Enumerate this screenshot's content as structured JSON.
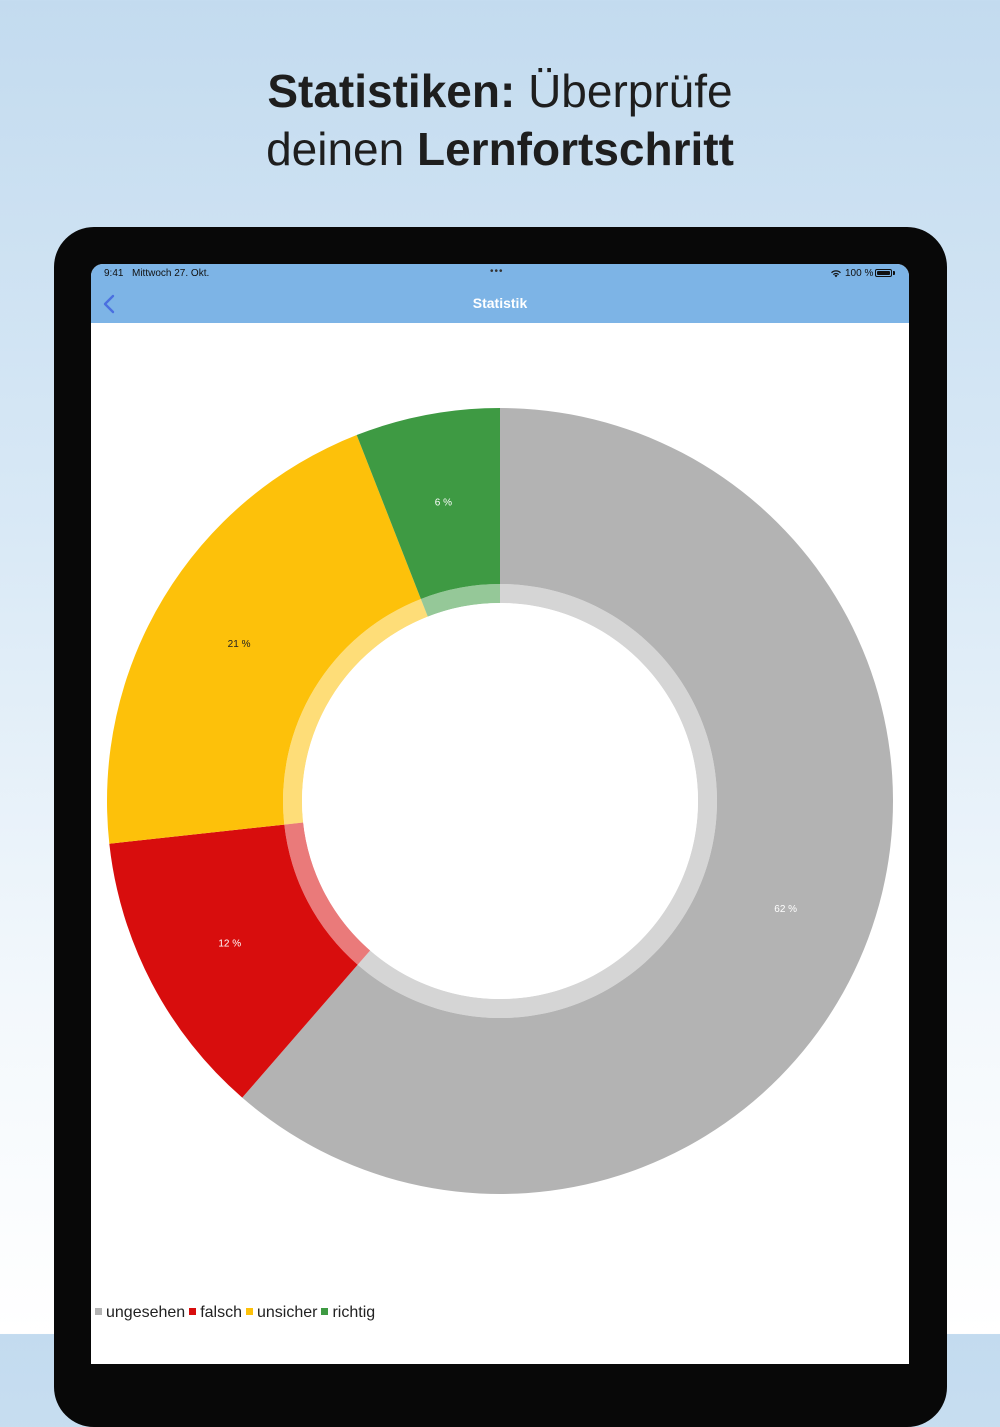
{
  "headline": {
    "line1_bold": "Statistiken:",
    "line1_rest": " Überprüfe",
    "line2_light": "deinen ",
    "line2_bold": "Lernfortschritt"
  },
  "statusbar": {
    "time": "9:41",
    "date": "Mittwoch 27. Okt.",
    "dots": "•••",
    "battery": "100 %"
  },
  "navbar": {
    "title": "Statistik",
    "back_icon": "chevron-left-icon"
  },
  "colors": {
    "bar": "#7db4e6",
    "ungesehen": "#b3b3b3",
    "falsch": "#d80d0d",
    "unsicher": "#fdc10a",
    "richtig": "#3e9a43"
  },
  "chart_data": {
    "type": "pie",
    "style": "donut",
    "start_angle_deg": 0,
    "direction": "clockwise",
    "series": [
      {
        "name": "ungesehen",
        "value": 62,
        "label": "62 %",
        "color": "#b3b3b3",
        "label_color": "#ffffff"
      },
      {
        "name": "falsch",
        "value": 12,
        "label": "12 %",
        "color": "#d80d0d",
        "label_color": "#ffffff"
      },
      {
        "name": "unsicher",
        "value": 21,
        "label": "21 %",
        "color": "#fdc10a",
        "label_color": "#222222"
      },
      {
        "name": "richtig",
        "value": 6,
        "label": "6 %",
        "color": "#3e9a43",
        "label_color": "#ffffff"
      }
    ],
    "legend_position": "bottom-left"
  },
  "legend": [
    {
      "label": "ungesehen",
      "color": "#b3b3b3"
    },
    {
      "label": "falsch",
      "color": "#d80d0d"
    },
    {
      "label": "unsicher",
      "color": "#fdc10a"
    },
    {
      "label": "richtig",
      "color": "#3e9a43"
    }
  ]
}
